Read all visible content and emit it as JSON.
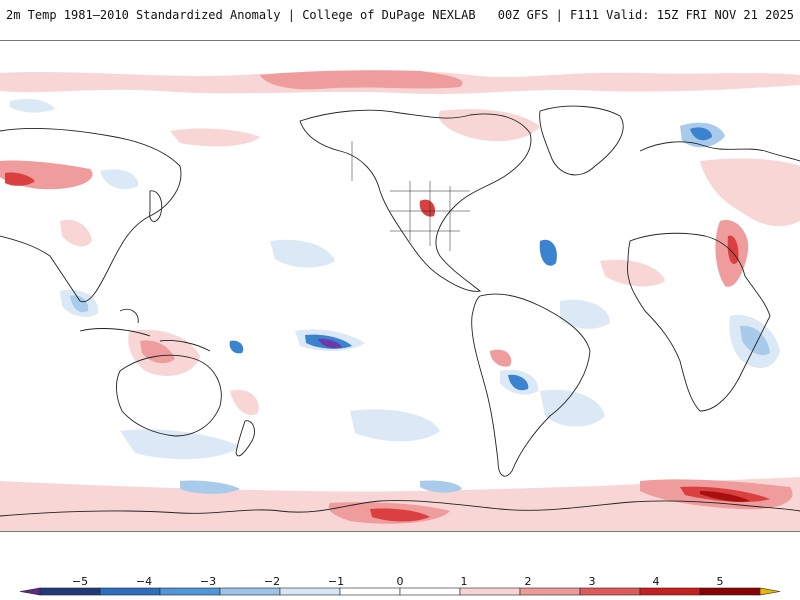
{
  "header": {
    "left_title": "2m Temp 1981–2010 Standardized Anomaly | College of DuPage NEXLAB",
    "right_title": "00Z GFS | F111 Valid: 15Z FRI NOV 21 2025"
  },
  "colorbar": {
    "labels": [
      "−5",
      "−4",
      "−3",
      "−2",
      "−1",
      "0",
      "1",
      "2",
      "3",
      "4",
      "5"
    ],
    "colors": [
      "#5b2a86",
      "#1f3b7a",
      "#2d6fbf",
      "#4f97d8",
      "#9cc4e8",
      "#d6e6f5",
      "#ffffff",
      "#ffffff",
      "#f8d3d3",
      "#ee9a9a",
      "#e05a5a",
      "#c51f1f",
      "#8b0000",
      "#e6b800"
    ]
  },
  "map": {
    "land_fill": "#ffffff",
    "coast_color": "#222222",
    "pos_light": "#f8d6d6",
    "pos_mid": "#ee9c9c",
    "pos_strong": "#d9403f",
    "pos_max": "#a80f0f",
    "neg_light": "#dbe8f5",
    "neg_mid": "#a9cbeb",
    "neg_strong": "#3b82cf",
    "neg_max": "#6a3aa8"
  }
}
